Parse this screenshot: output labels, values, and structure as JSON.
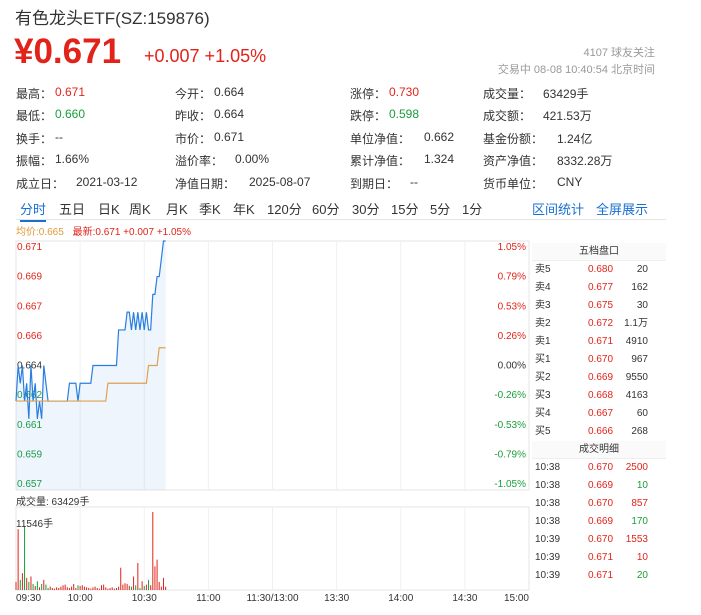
{
  "header": {
    "title": "有色龙头ETF(SZ:159876)",
    "price": "¥0.671",
    "change": "+0.007 +1.05%",
    "followers": "4107 球友关注",
    "status": "交易中 08-08 10:40:54 北京时间"
  },
  "quote": {
    "rows": [
      [
        {
          "label": "最高：",
          "value": "0.671",
          "color": "red"
        },
        {
          "label": "今开：",
          "value": "0.664"
        },
        {
          "label": "涨停：",
          "value": "0.730",
          "color": "red"
        },
        {
          "label": "成交量：",
          "value": "63429手"
        }
      ],
      [
        {
          "label": "最低：",
          "value": "0.660",
          "color": "green"
        },
        {
          "label": "昨收：",
          "value": "0.664"
        },
        {
          "label": "跌停：",
          "value": "0.598",
          "color": "green"
        },
        {
          "label": "成交额：",
          "value": "421.53万"
        }
      ],
      [
        {
          "label": "换手：",
          "value": "--"
        },
        {
          "label": "市价：",
          "value": "0.671"
        },
        {
          "label": "单位净值：",
          "value": "0.662"
        },
        {
          "label": "基金份额：",
          "value": "1.24亿"
        }
      ],
      [
        {
          "label": "振幅：",
          "value": "1.66%"
        },
        {
          "label": "溢价率：",
          "value": "0.00%"
        },
        {
          "label": "累计净值：",
          "value": "1.324"
        },
        {
          "label": "资产净值：",
          "value": "8332.28万"
        }
      ],
      [
        {
          "label": "成立日：",
          "value": "2021-03-12"
        },
        {
          "label": "净值日期：",
          "value": "2025-08-07"
        },
        {
          "label": "到期日：",
          "value": "--"
        },
        {
          "label": "货币单位：",
          "value": "CNY"
        }
      ]
    ]
  },
  "tabs": [
    "分时",
    "五日",
    "日K",
    "周K",
    "月K",
    "季K",
    "年K",
    "120分",
    "60分",
    "30分",
    "15分",
    "5分",
    "1分"
  ],
  "tabs_right": [
    "区间统计",
    "全屏展示"
  ],
  "legend": {
    "avg": "均价:0.665",
    "last": "最新:0.671 +0.007 +1.05%"
  },
  "volume": {
    "label": "成交量: 63429手",
    "max": "11546手"
  },
  "order_book": {
    "title": "五档盘口",
    "asks": [
      {
        "label": "卖5",
        "price": "0.680",
        "vol": "20"
      },
      {
        "label": "卖4",
        "price": "0.677",
        "vol": "162"
      },
      {
        "label": "卖3",
        "price": "0.675",
        "vol": "30"
      },
      {
        "label": "卖2",
        "price": "0.672",
        "vol": "1.1万"
      },
      {
        "label": "卖1",
        "price": "0.671",
        "vol": "4910"
      }
    ],
    "bids": [
      {
        "label": "买1",
        "price": "0.670",
        "vol": "967"
      },
      {
        "label": "买2",
        "price": "0.669",
        "vol": "9550"
      },
      {
        "label": "买3",
        "price": "0.668",
        "vol": "4163"
      },
      {
        "label": "买4",
        "price": "0.667",
        "vol": "60"
      },
      {
        "label": "买5",
        "price": "0.666",
        "vol": "268"
      }
    ]
  },
  "trades": {
    "title": "成交明细",
    "rows": [
      {
        "time": "10:38",
        "price": "0.670",
        "vol": "2500",
        "color": "red"
      },
      {
        "time": "10:38",
        "price": "0.669",
        "vol": "10",
        "color": "green"
      },
      {
        "time": "10:38",
        "price": "0.670",
        "vol": "857",
        "color": "red"
      },
      {
        "time": "10:38",
        "price": "0.669",
        "vol": "170",
        "color": "green"
      },
      {
        "time": "10:39",
        "price": "0.670",
        "vol": "1553",
        "color": "red"
      },
      {
        "time": "10:39",
        "price": "0.671",
        "vol": "10",
        "color": "red"
      },
      {
        "time": "10:39",
        "price": "0.671",
        "vol": "20",
        "color": "green"
      }
    ]
  },
  "chart_data": {
    "type": "line",
    "y_left_ticks": [
      "0.671",
      "0.669",
      "0.667",
      "0.666",
      "0.664",
      "0.662",
      "0.661",
      "0.659",
      "0.657"
    ],
    "y_right_ticks": [
      "1.05%",
      "0.79%",
      "0.53%",
      "0.26%",
      "0.00%",
      "-0.26%",
      "-0.53%",
      "-0.79%",
      "-1.05%"
    ],
    "x_ticks": [
      "09:30",
      "10:00",
      "10:30",
      "11:00",
      "11:30/13:00",
      "13:30",
      "14:00",
      "14:30",
      "15:00"
    ],
    "ylim": [
      0.657,
      0.671
    ],
    "minutes_elapsed_max": 70,
    "series": [
      {
        "name": "最新",
        "color": "#2a7ee0",
        "values": [
          0.662,
          0.664,
          0.663,
          0.664,
          0.662,
          0.663,
          0.661,
          0.664,
          0.662,
          0.663,
          0.661,
          0.662,
          0.661,
          0.664,
          0.663,
          0.662,
          0.662,
          0.662,
          0.662,
          0.662,
          0.662,
          0.662,
          0.662,
          0.662,
          0.662,
          0.663,
          0.663,
          0.663,
          0.663,
          0.662,
          0.663,
          0.663,
          0.663,
          0.663,
          0.663,
          0.663,
          0.664,
          0.664,
          0.664,
          0.664,
          0.664,
          0.664,
          0.664,
          0.664,
          0.664,
          0.664,
          0.664,
          0.664,
          0.666,
          0.666,
          0.666,
          0.666,
          0.667,
          0.667,
          0.666,
          0.667,
          0.666,
          0.667,
          0.666,
          0.667,
          0.666,
          0.667,
          0.666,
          0.666,
          0.668,
          0.668,
          0.669,
          0.669,
          0.67,
          0.671,
          0.671
        ]
      },
      {
        "name": "均价",
        "color": "#e0a050",
        "values": [
          0.662,
          0.662,
          0.662,
          0.662,
          0.662,
          0.662,
          0.662,
          0.662,
          0.662,
          0.662,
          0.662,
          0.662,
          0.662,
          0.662,
          0.662,
          0.662,
          0.662,
          0.662,
          0.662,
          0.662,
          0.662,
          0.662,
          0.662,
          0.662,
          0.662,
          0.662,
          0.662,
          0.662,
          0.662,
          0.662,
          0.662,
          0.662,
          0.662,
          0.662,
          0.662,
          0.662,
          0.662,
          0.662,
          0.662,
          0.662,
          0.662,
          0.662,
          0.662,
          0.663,
          0.663,
          0.663,
          0.663,
          0.663,
          0.663,
          0.663,
          0.663,
          0.663,
          0.663,
          0.663,
          0.663,
          0.663,
          0.663,
          0.663,
          0.663,
          0.663,
          0.663,
          0.663,
          0.664,
          0.664,
          0.664,
          0.664,
          0.664,
          0.665,
          0.665,
          0.665,
          0.665
        ]
      }
    ],
    "volume": [
      1200,
      9000,
      1500,
      2500,
      9500,
      1800,
      1200,
      2000,
      900,
      600,
      1300,
      400,
      900,
      1500,
      800,
      300,
      500,
      300,
      200,
      400,
      300,
      500,
      700,
      800,
      400,
      300,
      500,
      900,
      300,
      700,
      600,
      700,
      500,
      400,
      300,
      200,
      400,
      500,
      300,
      200,
      700,
      800,
      400,
      200,
      300,
      400,
      200,
      300,
      500,
      3300,
      800,
      1000,
      900,
      600,
      500,
      2000,
      700,
      4000,
      300,
      1300,
      600,
      800,
      1500,
      700,
      11546,
      3500,
      4500,
      1200,
      500,
      1800,
      500
    ]
  }
}
